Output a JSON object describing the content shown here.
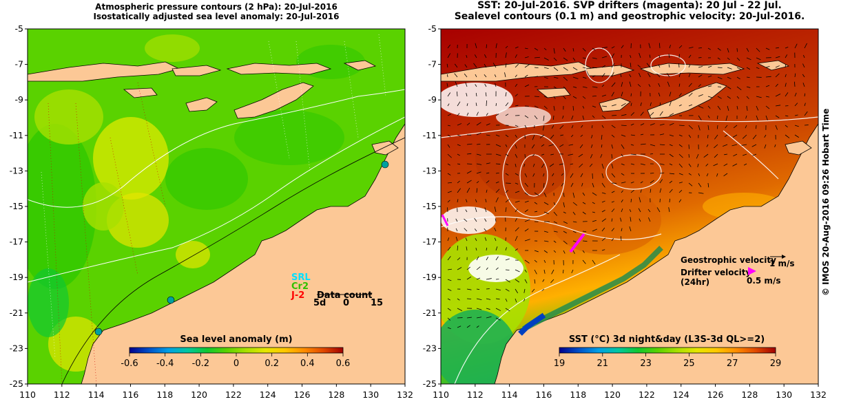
{
  "left_panel": {
    "title_line1": "Atmospheric pressure contours (2 hPa): 20-Jul-2016",
    "title_line2": "Isostatically adjusted sea level anomaly: 20-Jul-2016",
    "colorbar": {
      "label": "Sea level anomaly (m)",
      "ticks": [
        "-0.6",
        "-0.4",
        "-0.2",
        "0",
        "0.2",
        "0.4",
        "0.6"
      ],
      "colors": [
        "#00008c",
        "#0050c8",
        "#00a0e6",
        "#00c8a0",
        "#10c830",
        "#5ad200",
        "#a8e000",
        "#e6e600",
        "#ffc800",
        "#ff8c00",
        "#e04800",
        "#a00000"
      ]
    },
    "legend": {
      "srl": "SRL",
      "cr2": "Cr2",
      "j2": "J-2",
      "data_count_label": "Data count",
      "counts": [
        "5d",
        "0",
        "15"
      ],
      "colors": {
        "srl": "#00e0ff",
        "cr2": "#30c000",
        "j2": "#ff0000"
      }
    }
  },
  "right_panel": {
    "title_line1": "SST: 20-Jul-2016. SVP drifters (magenta): 20 Jul - 22 Jul.",
    "title_line2": "Sealevel contours (0.1 m) and geostrophic velocity: 20-Jul-2016.",
    "colorbar": {
      "label": "SST (°C) 3d night&day (L3S-3d QL>=2)",
      "ticks": [
        "19",
        "21",
        "23",
        "25",
        "27",
        "29"
      ],
      "colors": [
        "#00008c",
        "#0050c8",
        "#00a0e6",
        "#00c8a0",
        "#10c830",
        "#5ad200",
        "#a8e000",
        "#e6e600",
        "#ffc800",
        "#ff8c00",
        "#e04800",
        "#a00000"
      ]
    },
    "legend": {
      "geostrophic_label": "Geostrophic velocity",
      "geostrophic_scale": "1 m/s",
      "drifter_label": "Drifter velocity",
      "drifter_sub": "(24hr)",
      "drifter_scale": "0.5 m/s",
      "drifter_color": "#ff00ff"
    }
  },
  "axes": {
    "lon_ticks": [
      "110",
      "112",
      "114",
      "116",
      "118",
      "120",
      "122",
      "124",
      "126",
      "128",
      "130",
      "132"
    ],
    "lat_ticks": [
      "-5",
      "-7",
      "-9",
      "-11",
      "-13",
      "-15",
      "-17",
      "-19",
      "-21",
      "-23",
      "-25"
    ]
  },
  "credit": "© IMOS 20-Aug-2016 09:26 Hobart Time",
  "colors": {
    "land": "#fcc896",
    "sla_base": "#5ad200",
    "sst_base": "#c84800"
  }
}
